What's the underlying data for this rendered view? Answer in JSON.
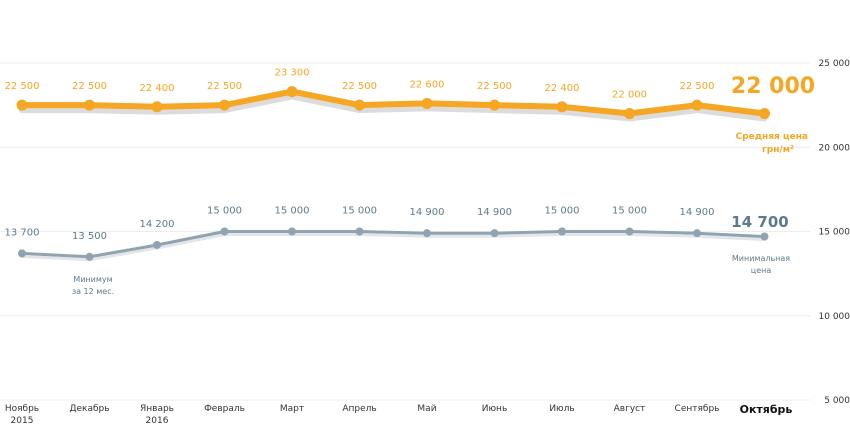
{
  "chart_data": {
    "type": "line",
    "categories": [
      "Ноябрь 2015",
      "Декабрь",
      "Январь 2016",
      "Февраль",
      "Март",
      "Апрель",
      "Май",
      "Июнь",
      "Июль",
      "Август",
      "Сентябрь",
      "Октябрь"
    ],
    "category_lines": [
      [
        "Ноябрь",
        "2015"
      ],
      [
        "Декабрь"
      ],
      [
        "Январь",
        "2016"
      ],
      [
        "Февраль"
      ],
      [
        "Март"
      ],
      [
        "Апрель"
      ],
      [
        "Май"
      ],
      [
        "Июнь"
      ],
      [
        "Июль"
      ],
      [
        "Август"
      ],
      [
        "Сентябрь"
      ],
      [
        "Октябрь"
      ]
    ],
    "ylim": [
      5000,
      25000
    ],
    "yticks": [
      5000,
      10000,
      15000,
      20000,
      25000
    ],
    "ytick_labels": [
      "5 000",
      "10 000",
      "15 000",
      "20 000",
      "25 000"
    ],
    "grid": true,
    "series": [
      {
        "name": "Средняя цена грн/м²",
        "color": "#f5a623",
        "values": [
          22500,
          22500,
          22400,
          22500,
          23300,
          22500,
          22600,
          22500,
          22400,
          22000,
          22500,
          22000
        ],
        "labels": [
          "22 500",
          "22 500",
          "22 400",
          "22 500",
          "23 300",
          "22 500",
          "22 600",
          "22 500",
          "22 400",
          "22 000",
          "22 500",
          "22 000"
        ]
      },
      {
        "name": "Минимальная цена",
        "color": "#8fa3b1",
        "values": [
          13700,
          13500,
          14200,
          15000,
          15000,
          15000,
          14900,
          14900,
          15000,
          15000,
          14900,
          14700
        ],
        "labels": [
          "13 700",
          "13 500",
          "14 200",
          "15 000",
          "15 000",
          "15 000",
          "14 900",
          "14 900",
          "15 000",
          "15 000",
          "14 900",
          "14 700"
        ]
      }
    ],
    "annotations": {
      "avg_line1": "Средняя цена",
      "avg_line2": "грн/м²",
      "min_line1": "Минимальная",
      "min_line2": "цена",
      "low_line1": "Минимум",
      "low_line2": "за 12 мес."
    }
  }
}
